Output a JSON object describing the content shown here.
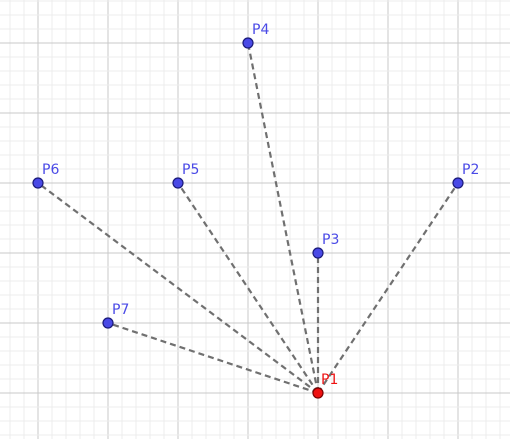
{
  "colors": {
    "background": "#ffffff",
    "minor_grid": "#ececec",
    "major_grid": "#c8c8c8",
    "segment": "#707070",
    "point_fill": "#4a4ae6",
    "point_stroke": "#1a1a7a",
    "label": "#4a4ae6",
    "center_fill": "#ee1111",
    "center_stroke": "#7a0000",
    "center_label": "#ee1111"
  },
  "grid": {
    "major_every_minor_cells": 5
  },
  "center": {
    "name": "P1",
    "x": 0,
    "y": 0
  },
  "points": [
    {
      "name": "P2",
      "x": 2,
      "y": 3
    },
    {
      "name": "P3",
      "x": 0,
      "y": 2
    },
    {
      "name": "P4",
      "x": -1,
      "y": 5
    },
    {
      "name": "P5",
      "x": -2,
      "y": 3
    },
    {
      "name": "P6",
      "x": -4,
      "y": 3
    },
    {
      "name": "P7",
      "x": -3,
      "y": 1
    }
  ]
}
